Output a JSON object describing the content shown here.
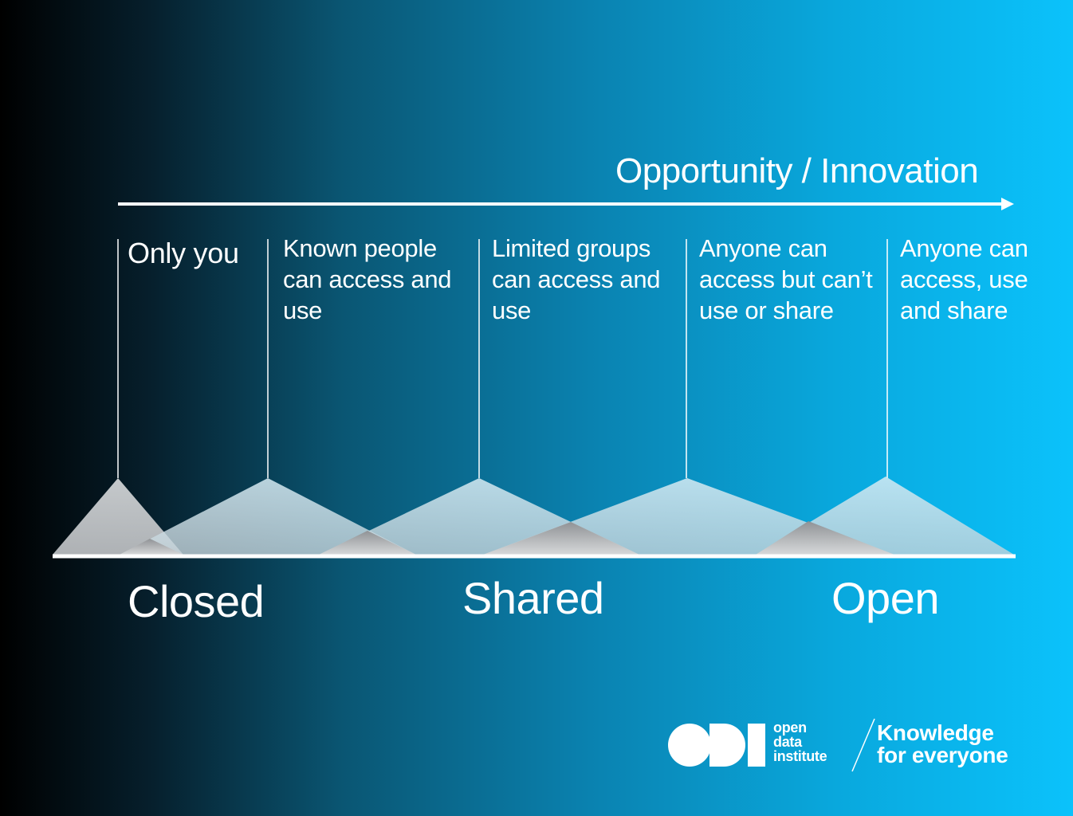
{
  "axis": {
    "title": "Opportunity / Innovation"
  },
  "levels": [
    {
      "label": "Only you"
    },
    {
      "label": "Known people can access and use"
    },
    {
      "label": "Limited groups can access and use"
    },
    {
      "label": "Anyone can access but can’t use or share"
    },
    {
      "label": "Anyone can access, use and share"
    }
  ],
  "categories": [
    "Closed",
    "Shared",
    "Open"
  ],
  "branding": {
    "logo_text": "ODI",
    "org_name_lines": [
      "open",
      "data",
      "institute"
    ],
    "tagline_lines": [
      "Knowledge",
      "for everyone"
    ]
  },
  "colors": {
    "background_start": "#000000",
    "background_end": "#0bc2fb",
    "line": "#ffffff",
    "triangle_light": "#cfe3ec",
    "triangle_shade": "#a9adb2"
  }
}
